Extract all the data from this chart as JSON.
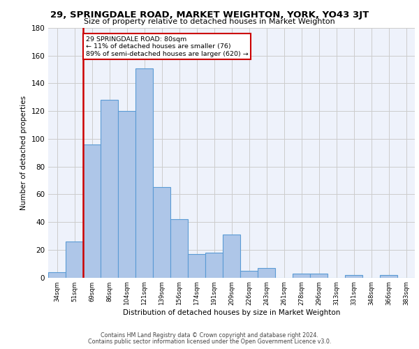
{
  "title": "29, SPRINGDALE ROAD, MARKET WEIGHTON, YORK, YO43 3JT",
  "subtitle": "Size of property relative to detached houses in Market Weighton",
  "xlabel": "Distribution of detached houses by size in Market Weighton",
  "ylabel": "Number of detached properties",
  "categories": [
    "34sqm",
    "51sqm",
    "69sqm",
    "86sqm",
    "104sqm",
    "121sqm",
    "139sqm",
    "156sqm",
    "174sqm",
    "191sqm",
    "209sqm",
    "226sqm",
    "243sqm",
    "261sqm",
    "278sqm",
    "296sqm",
    "313sqm",
    "331sqm",
    "348sqm",
    "366sqm",
    "383sqm"
  ],
  "values": [
    4,
    26,
    96,
    128,
    120,
    151,
    65,
    42,
    17,
    18,
    31,
    5,
    7,
    0,
    3,
    3,
    0,
    2,
    0,
    2,
    0
  ],
  "bar_color": "#aec6e8",
  "bar_edge_color": "#5b9bd5",
  "vline_x": 1.5,
  "vline_color": "#cc0000",
  "annotation_text": "29 SPRINGDALE ROAD: 80sqm\n← 11% of detached houses are smaller (76)\n89% of semi-detached houses are larger (620) →",
  "annotation_box_facecolor": "#ffffff",
  "annotation_box_edgecolor": "#cc0000",
  "ylim": [
    0,
    180
  ],
  "yticks": [
    0,
    20,
    40,
    60,
    80,
    100,
    120,
    140,
    160,
    180
  ],
  "grid_color": "#cccccc",
  "bg_color": "#eef2fb",
  "footer1": "Contains HM Land Registry data © Crown copyright and database right 2024.",
  "footer2": "Contains public sector information licensed under the Open Government Licence v3.0."
}
